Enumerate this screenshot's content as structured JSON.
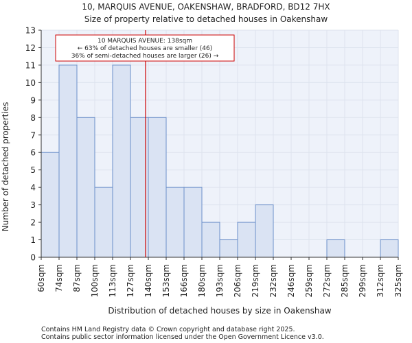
{
  "chart_data": {
    "type": "bar",
    "title": "10, MARQUIS AVENUE, OAKENSHAW, BRADFORD, BD12 7HX",
    "subtitle": "Size of property relative to detached houses in Oakenshaw",
    "xlabel": "Distribution of detached houses by size in Oakenshaw",
    "ylabel": "Number of detached properties",
    "bin_edges": [
      60,
      74,
      87,
      100,
      113,
      127,
      140,
      153,
      166,
      180,
      193,
      206,
      219,
      232,
      246,
      259,
      272,
      285,
      299,
      312,
      325
    ],
    "x_tick_labels": [
      "60sqm",
      "74sqm",
      "87sqm",
      "100sqm",
      "113sqm",
      "127sqm",
      "140sqm",
      "153sqm",
      "166sqm",
      "180sqm",
      "193sqm",
      "206sqm",
      "219sqm",
      "232sqm",
      "246sqm",
      "259sqm",
      "272sqm",
      "285sqm",
      "299sqm",
      "312sqm",
      "325sqm"
    ],
    "values": [
      6,
      11,
      8,
      4,
      11,
      8,
      8,
      4,
      4,
      2,
      1,
      2,
      3,
      0,
      0,
      0,
      1,
      0,
      0,
      1
    ],
    "y_ticks": [
      0,
      1,
      2,
      3,
      4,
      5,
      6,
      7,
      8,
      9,
      10,
      11,
      12,
      13
    ],
    "ylim": [
      0,
      13
    ],
    "grid": true,
    "marker": {
      "value": 138,
      "color": "#cc0000"
    },
    "annotation": {
      "lines": [
        "10 MARQUIS AVENUE: 138sqm",
        "← 63% of detached houses are smaller (46)",
        "36% of semi-detached houses are larger (26) →"
      ]
    },
    "colors": {
      "bar_fill": "#dae3f3",
      "bar_edge": "#6b8fc9",
      "grid": "#dde3ee",
      "background": "#eef2fa"
    }
  },
  "footer": {
    "line1": "Contains HM Land Registry data © Crown copyright and database right 2025.",
    "line2": "Contains public sector information licensed under the Open Government Licence v3.0."
  }
}
